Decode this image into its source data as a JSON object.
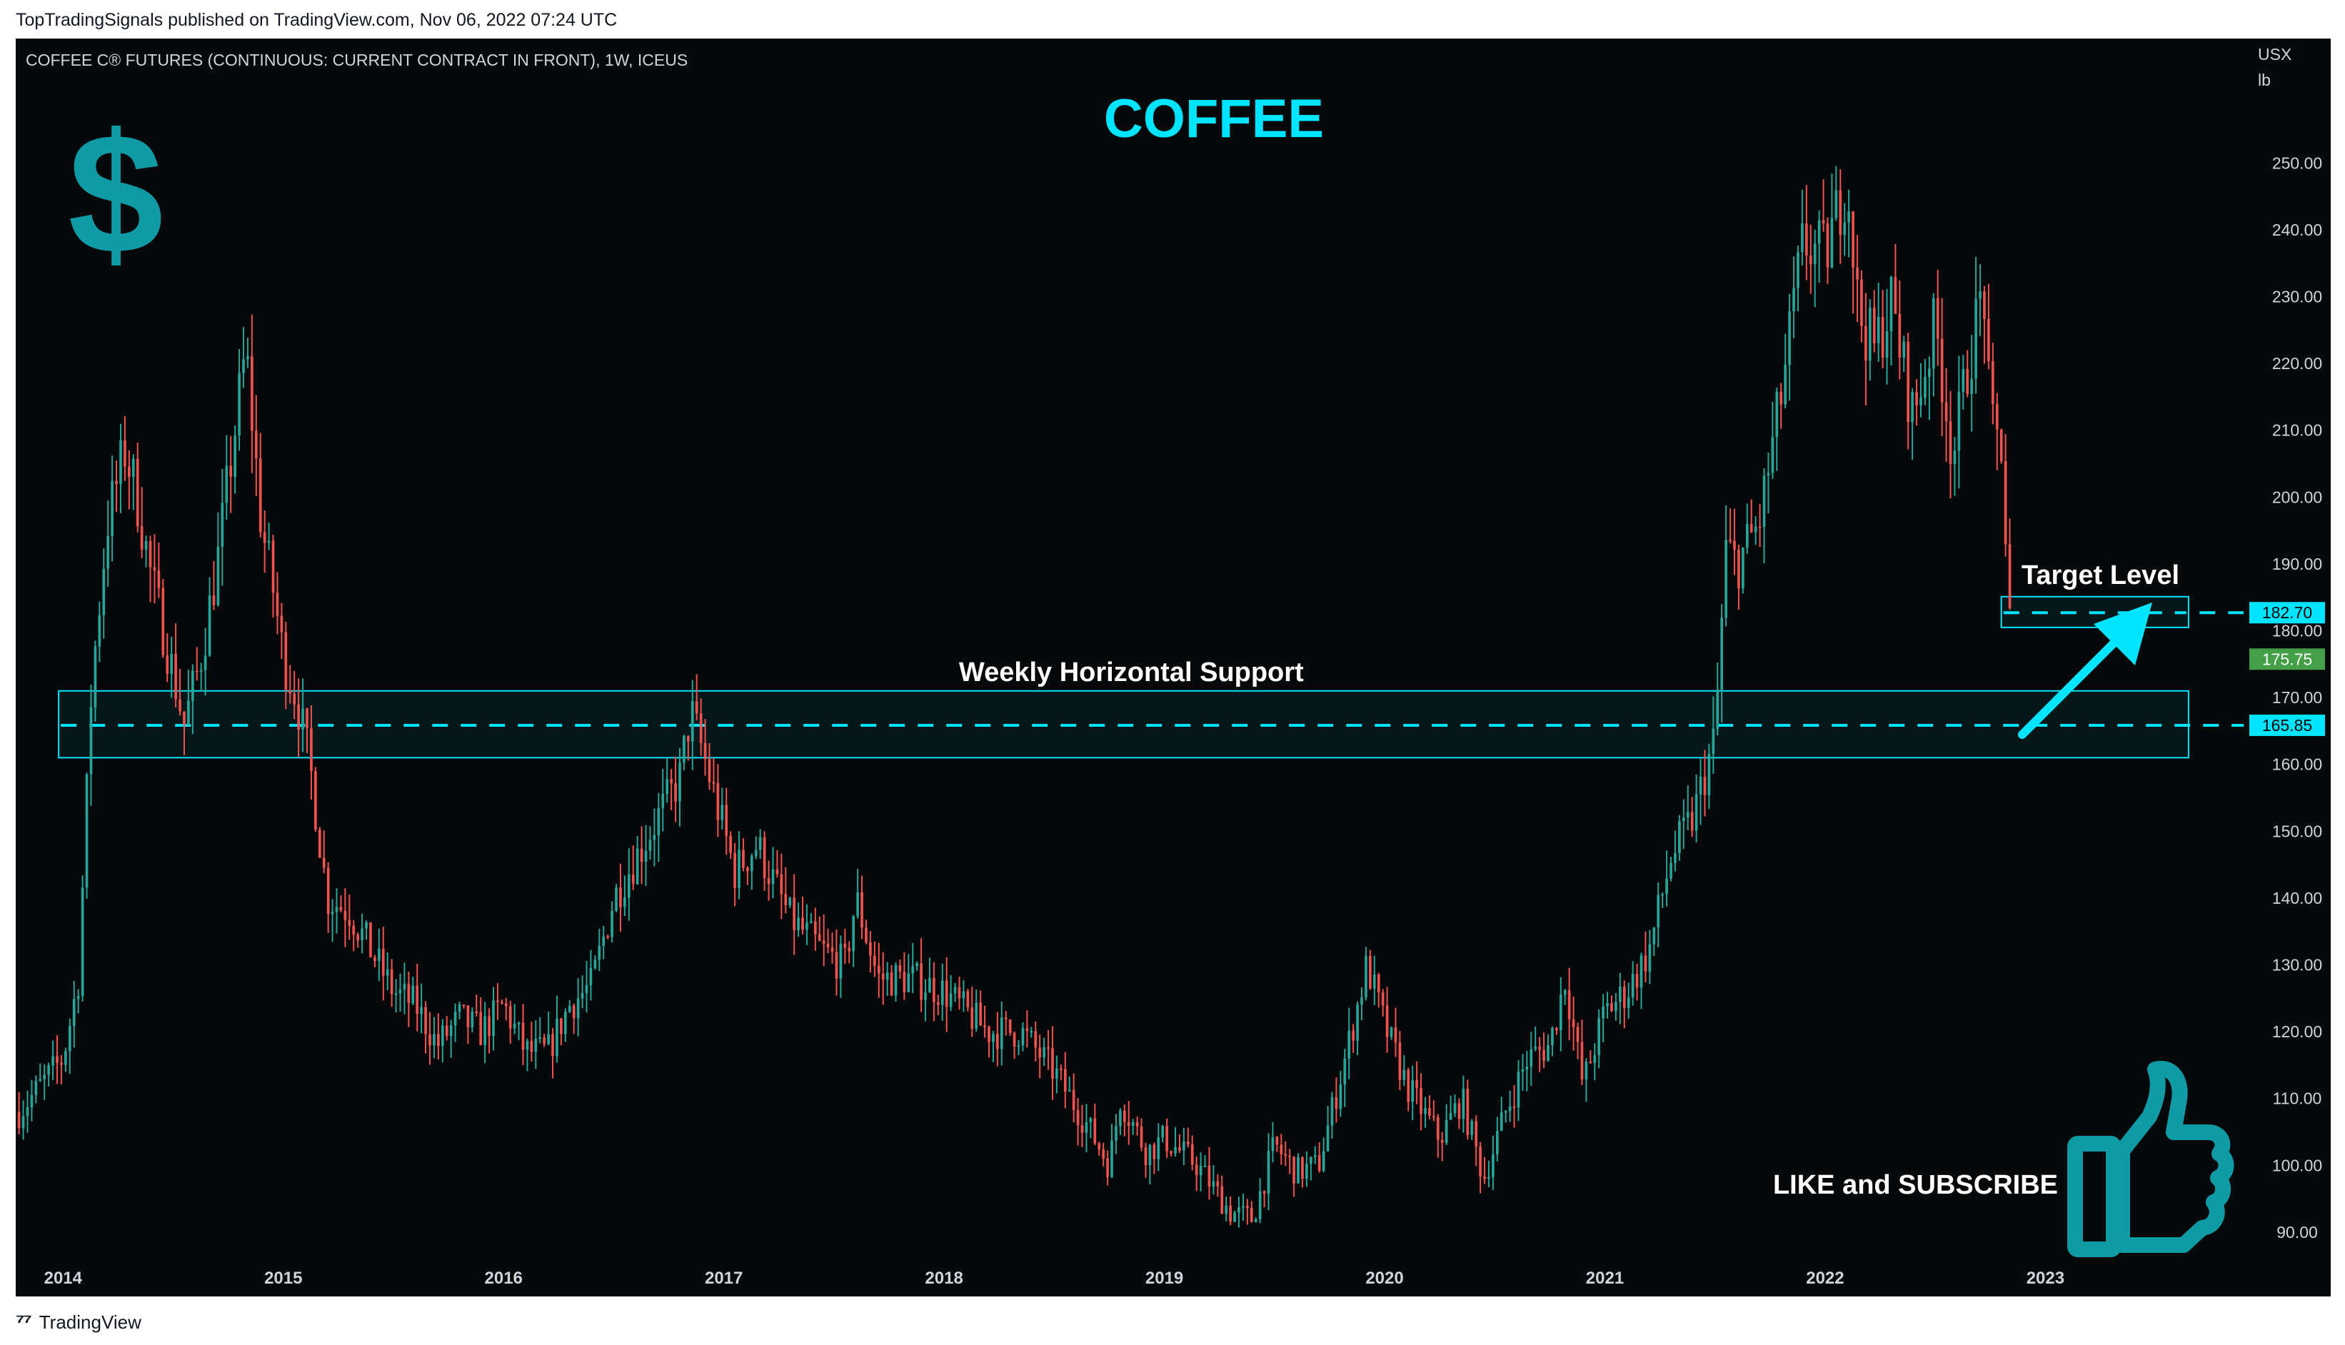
{
  "header": {
    "published": "TopTradingSignals published on TradingView.com, Nov 06, 2022 07:24 UTC"
  },
  "footer": {
    "brand": "TradingView",
    "logo_icon": "tradingview-logo-icon"
  },
  "chart_meta": {
    "symbol_title": "COFFEE C® FUTURES (CONTINUOUS: CURRENT CONTRACT IN FRONT), 1W, ICEUS",
    "currency": "USX",
    "unit": "lb",
    "big_title": "COFFEE",
    "dollar_glyph": "$",
    "support_label": "Weekly Horizontal Support",
    "target_label": "Target Level",
    "cta_label": "LIKE and SUBSCRIBE",
    "icons": [
      "dollar-icon",
      "thumbs-up-icon",
      "arrow-icon"
    ]
  },
  "colors": {
    "up": "#26a69a",
    "down": "#ef5350",
    "accent": "#00e5ff",
    "teal_icon": "#0f9ba5",
    "background": "#070809",
    "last_price_badge": "#43a047"
  },
  "chart_data": {
    "type": "candlestick",
    "title": "COFFEE",
    "xlabel": "",
    "ylabel": "USX / lb",
    "ylim": [
      87,
      262
    ],
    "y_ticks": [
      90,
      100,
      110,
      120,
      130,
      140,
      150,
      160,
      170,
      180,
      190,
      200,
      210,
      220,
      230,
      240,
      250
    ],
    "x_ticks": [
      {
        "label": "2014",
        "t": 2014.0
      },
      {
        "label": "2015",
        "t": 2015.0
      },
      {
        "label": "2016",
        "t": 2016.0
      },
      {
        "label": "2017",
        "t": 2017.0
      },
      {
        "label": "2018",
        "t": 2018.0
      },
      {
        "label": "2019",
        "t": 2019.0
      },
      {
        "label": "2020",
        "t": 2020.0
      },
      {
        "label": "2021",
        "t": 2021.0
      },
      {
        "label": "2022",
        "t": 2022.0
      },
      {
        "label": "2023",
        "t": 2023.0
      }
    ],
    "grid": false,
    "interval": "1W",
    "price_path": [
      [
        2013.8,
        108
      ],
      [
        2014.0,
        116
      ],
      [
        2014.07,
        128
      ],
      [
        2014.13,
        172
      ],
      [
        2014.2,
        196
      ],
      [
        2014.28,
        207
      ],
      [
        2014.33,
        201
      ],
      [
        2014.4,
        188
      ],
      [
        2014.47,
        178
      ],
      [
        2014.55,
        166
      ],
      [
        2014.62,
        175
      ],
      [
        2014.7,
        190
      ],
      [
        2014.78,
        210
      ],
      [
        2014.83,
        222
      ],
      [
        2014.9,
        196
      ],
      [
        2014.96,
        185
      ],
      [
        2015.0,
        176
      ],
      [
        2015.06,
        170
      ],
      [
        2015.12,
        160
      ],
      [
        2015.2,
        140
      ],
      [
        2015.3,
        138
      ],
      [
        2015.4,
        132
      ],
      [
        2015.5,
        126
      ],
      [
        2015.6,
        124
      ],
      [
        2015.7,
        118
      ],
      [
        2015.8,
        122
      ],
      [
        2015.9,
        120
      ],
      [
        2016.0,
        124
      ],
      [
        2016.1,
        117
      ],
      [
        2016.2,
        117
      ],
      [
        2016.3,
        124
      ],
      [
        2016.4,
        127
      ],
      [
        2016.5,
        140
      ],
      [
        2016.6,
        146
      ],
      [
        2016.7,
        152
      ],
      [
        2016.8,
        158
      ],
      [
        2016.85,
        168
      ],
      [
        2016.92,
        160
      ],
      [
        2017.0,
        150
      ],
      [
        2017.05,
        144
      ],
      [
        2017.15,
        148
      ],
      [
        2017.3,
        137
      ],
      [
        2017.45,
        132
      ],
      [
        2017.55,
        130
      ],
      [
        2017.6,
        140
      ],
      [
        2017.7,
        128
      ],
      [
        2017.85,
        128
      ],
      [
        2018.0,
        126
      ],
      [
        2018.2,
        120
      ],
      [
        2018.35,
        120
      ],
      [
        2018.5,
        114
      ],
      [
        2018.65,
        106
      ],
      [
        2018.75,
        100
      ],
      [
        2018.8,
        110
      ],
      [
        2018.92,
        102
      ],
      [
        2019.0,
        104
      ],
      [
        2019.15,
        100
      ],
      [
        2019.3,
        93
      ],
      [
        2019.4,
        92
      ],
      [
        2019.5,
        103
      ],
      [
        2019.6,
        99
      ],
      [
        2019.7,
        100
      ],
      [
        2019.85,
        120
      ],
      [
        2019.92,
        130
      ],
      [
        2020.0,
        121
      ],
      [
        2020.1,
        112
      ],
      [
        2020.25,
        104
      ],
      [
        2020.35,
        110
      ],
      [
        2020.45,
        98
      ],
      [
        2020.55,
        108
      ],
      [
        2020.65,
        116
      ],
      [
        2020.75,
        118
      ],
      [
        2020.82,
        128
      ],
      [
        2020.9,
        112
      ],
      [
        2021.0,
        123
      ],
      [
        2021.1,
        126
      ],
      [
        2021.2,
        132
      ],
      [
        2021.3,
        146
      ],
      [
        2021.4,
        152
      ],
      [
        2021.5,
        164
      ],
      [
        2021.55,
        192
      ],
      [
        2021.6,
        190
      ],
      [
        2021.7,
        196
      ],
      [
        2021.8,
        215
      ],
      [
        2021.9,
        238
      ],
      [
        2022.0,
        236
      ],
      [
        2022.1,
        248
      ],
      [
        2022.15,
        228
      ],
      [
        2022.22,
        222
      ],
      [
        2022.3,
        229
      ],
      [
        2022.4,
        212
      ],
      [
        2022.5,
        226
      ],
      [
        2022.58,
        206
      ],
      [
        2022.65,
        220
      ],
      [
        2022.72,
        232
      ],
      [
        2022.75,
        210
      ],
      [
        2022.8,
        208
      ],
      [
        2022.83,
        186
      ],
      [
        2022.85,
        176
      ]
    ],
    "levels": {
      "support_dashed": 165.85,
      "support_zone": [
        161,
        171
      ],
      "target_dashed": 182.7,
      "target_zone": [
        180.5,
        185.1
      ],
      "last_price": 175.75
    },
    "price_labels": [
      "182.70",
      "175.75",
      "165.85"
    ]
  }
}
